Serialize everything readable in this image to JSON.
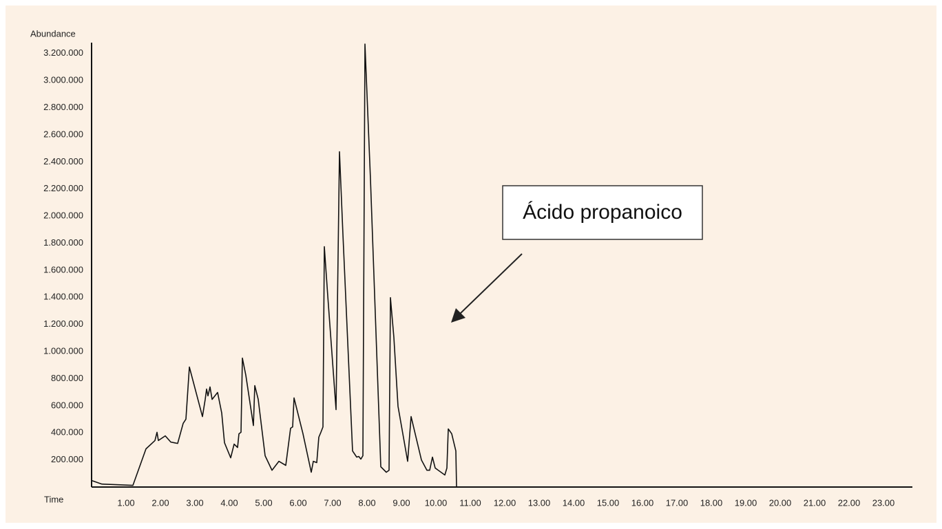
{
  "chart_data": {
    "type": "line",
    "y_label": "Abundance",
    "x_label": "Time",
    "annotation": "Ácido propanoico",
    "color": "#111111",
    "grid": false,
    "xlim": [
      0,
      23.84
    ],
    "ylim": [
      0,
      3280000
    ],
    "xticks": [
      {
        "value": 1,
        "label": "1.00"
      },
      {
        "value": 2,
        "label": "2.00"
      },
      {
        "value": 3,
        "label": "3.00"
      },
      {
        "value": 4,
        "label": "4.00"
      },
      {
        "value": 5,
        "label": "5.00"
      },
      {
        "value": 6,
        "label": "6.00"
      },
      {
        "value": 7,
        "label": "7.00"
      },
      {
        "value": 8,
        "label": "8.00"
      },
      {
        "value": 9,
        "label": "9.00"
      },
      {
        "value": 10,
        "label": "10.00"
      },
      {
        "value": 11,
        "label": "11.00"
      },
      {
        "value": 12,
        "label": "12.00"
      },
      {
        "value": 13,
        "label": "13.00"
      },
      {
        "value": 14,
        "label": "14.00"
      },
      {
        "value": 15,
        "label": "15.00"
      },
      {
        "value": 16,
        "label": "16.00"
      },
      {
        "value": 17,
        "label": "17.00"
      },
      {
        "value": 18,
        "label": "18.00"
      },
      {
        "value": 19,
        "label": "19.00"
      },
      {
        "value": 20,
        "label": "20.00"
      },
      {
        "value": 21,
        "label": "21.00"
      },
      {
        "value": 22,
        "label": "22.00"
      },
      {
        "value": 23,
        "label": "23.00"
      }
    ],
    "yticks": [
      {
        "value": 200000,
        "label": "200.000"
      },
      {
        "value": 400000,
        "label": "400.000"
      },
      {
        "value": 600000,
        "label": "600.000"
      },
      {
        "value": 800000,
        "label": "800.000"
      },
      {
        "value": 1000000,
        "label": "1.000.000"
      },
      {
        "value": 1200000,
        "label": "1.200.000"
      },
      {
        "value": 1400000,
        "label": "1.400.000"
      },
      {
        "value": 1600000,
        "label": "1.600.000"
      },
      {
        "value": 1800000,
        "label": "1.800.000"
      },
      {
        "value": 2000000,
        "label": "2.000.000"
      },
      {
        "value": 2200000,
        "label": "2.200.000"
      },
      {
        "value": 2400000,
        "label": "2.400.000"
      },
      {
        "value": 2600000,
        "label": "2.600.000"
      },
      {
        "value": 2800000,
        "label": "2.800.000"
      },
      {
        "value": 3000000,
        "label": "3.000.000"
      },
      {
        "value": 3200000,
        "label": "3.200.000"
      }
    ],
    "x": [
      0,
      0.3,
      1.2,
      1.58,
      1.84,
      1.9,
      1.94,
      2.14,
      2.3,
      2.5,
      2.66,
      2.74,
      2.84,
      3.22,
      3.3,
      3.34,
      3.38,
      3.44,
      3.5,
      3.66,
      3.78,
      3.86,
      4.04,
      4.14,
      4.24,
      4.28,
      4.34,
      4.38,
      4.48,
      4.7,
      4.74,
      4.84,
      5.04,
      5.24,
      5.44,
      5.64,
      5.78,
      5.84,
      5.88,
      6.14,
      6.38,
      6.44,
      6.54,
      6.6,
      6.66,
      6.72,
      6.76,
      6.86,
      7.1,
      7.2,
      7.3,
      7.58,
      7.7,
      7.76,
      7.82,
      7.88,
      7.94,
      8.1,
      8.4,
      8.56,
      8.64,
      8.68,
      8.78,
      8.9,
      9.18,
      9.28,
      9.58,
      9.74,
      9.82,
      9.9,
      9.98,
      10.26,
      10.32,
      10.36,
      10.46,
      10.58,
      10.6
    ],
    "values": [
      48000,
      22000,
      12000,
      282000,
      343000,
      404000,
      343000,
      378000,
      332000,
      322000,
      470000,
      501000,
      886000,
      520000,
      647000,
      723000,
      673000,
      739000,
      647000,
      698000,
      546000,
      327000,
      216000,
      317000,
      292000,
      393000,
      404000,
      952000,
      825000,
      454000,
      749000,
      647000,
      231000,
      124000,
      190000,
      160000,
      434000,
      444000,
      658000,
      393000,
      109000,
      190000,
      180000,
      368000,
      404000,
      444000,
      1774000,
      1409000,
      571000,
      2475000,
      1866000,
      266000,
      221000,
      226000,
      206000,
      231000,
      3270000,
      2272000,
      150000,
      109000,
      124000,
      1398000,
      1104000,
      596000,
      190000,
      520000,
      200000,
      124000,
      124000,
      221000,
      140000,
      89000,
      140000,
      429000,
      393000,
      266000,
      0
    ]
  }
}
